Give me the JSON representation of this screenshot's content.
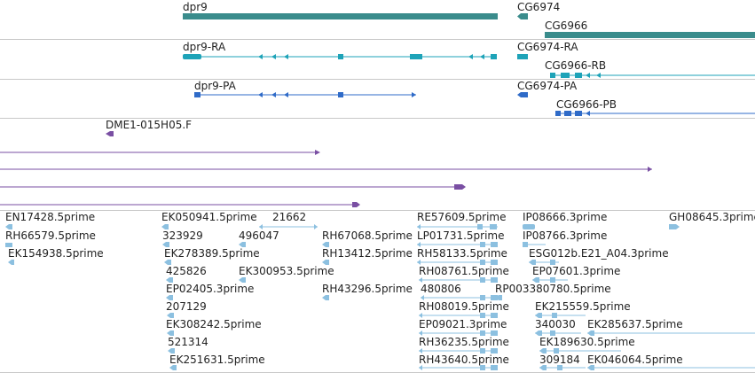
{
  "colors": {
    "gene": "#3a8c8c",
    "transcript": "#1ea3b8",
    "protein": "#2f6bc8",
    "clone": "#7a4fa3",
    "est": "#8cc0e0",
    "separator": "#c8c8c8"
  },
  "tracks": {
    "genes": {
      "items": [
        {
          "label": "dpr9",
          "strand": "forward"
        },
        {
          "label": "CG6974",
          "strand": "reverse"
        },
        {
          "label": "CG6966",
          "strand": "forward"
        }
      ]
    },
    "transcripts": {
      "items": [
        {
          "label": "dpr9-RA"
        },
        {
          "label": "CG6974-RA"
        },
        {
          "label": "CG6966-RB"
        }
      ]
    },
    "proteins": {
      "items": [
        {
          "label": "dpr9-PA"
        },
        {
          "label": "CG6974-PA"
        },
        {
          "label": "CG6966-PB"
        }
      ]
    },
    "clones": {
      "items": [
        {
          "label": "DME1-015H05.F"
        }
      ]
    },
    "ests": {
      "items": [
        {
          "label": "EN17428.5prime"
        },
        {
          "label": "RH66579.5prime"
        },
        {
          "label": "EK154938.5prime"
        },
        {
          "label": "EK050941.5prime"
        },
        {
          "label": "323929"
        },
        {
          "label": "EK278389.5prime"
        },
        {
          "label": "425826"
        },
        {
          "label": "EP02405.3prime"
        },
        {
          "label": "207129"
        },
        {
          "label": "EK308242.5prime"
        },
        {
          "label": "521314"
        },
        {
          "label": "EK251631.5prime"
        },
        {
          "label": "21662"
        },
        {
          "label": "496047"
        },
        {
          "label": "EK300953.5prime"
        },
        {
          "label": "RH67068.5prime"
        },
        {
          "label": "RH13412.5prime"
        },
        {
          "label": "RH43296.5prime"
        },
        {
          "label": "RE57609.5prime"
        },
        {
          "label": "LP01731.5prime"
        },
        {
          "label": "RH58133.5prime"
        },
        {
          "label": "RH08761.5prime"
        },
        {
          "label": "480806"
        },
        {
          "label": "RH08019.5prime"
        },
        {
          "label": "EP09021.3prime"
        },
        {
          "label": "RH36235.5prime"
        },
        {
          "label": "RH43640.5prime"
        },
        {
          "label": "IP08666.3prime"
        },
        {
          "label": "IP08766.3prime"
        },
        {
          "label": "ESG012b.E21_A04.3prime"
        },
        {
          "label": "EP07601.3prime"
        },
        {
          "label": "RP003380780.5prime"
        },
        {
          "label": "EK215559.5prime"
        },
        {
          "label": "340030"
        },
        {
          "label": "EK285637.5prime"
        },
        {
          "label": "EK189630.5prime"
        },
        {
          "label": "309184"
        },
        {
          "label": "EK046064.5prime"
        },
        {
          "label": "GH08645.3prime"
        }
      ]
    }
  }
}
